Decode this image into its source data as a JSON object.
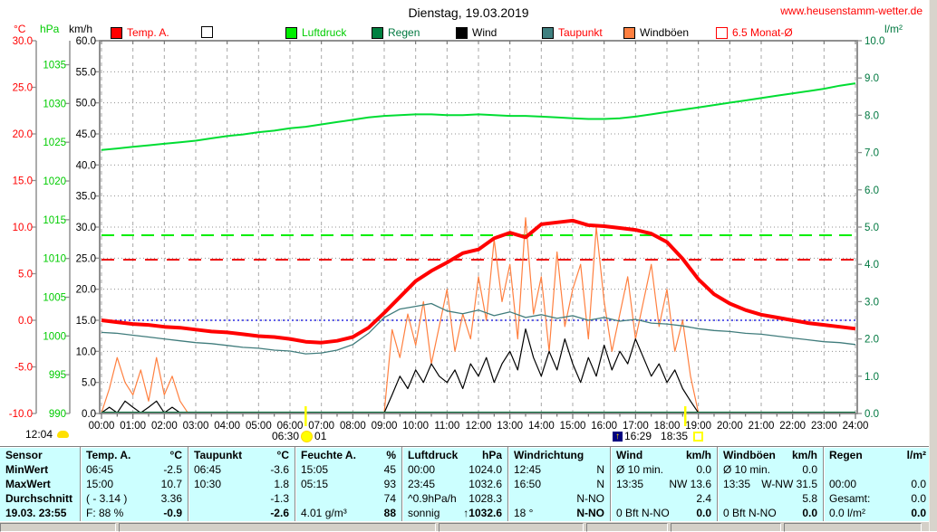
{
  "header": {
    "title": "Dienstag, 19.03.2019",
    "website": "www.heusenstamm-wetter.de"
  },
  "axis_unit_labels": {
    "temp": "°C",
    "pressure": "hPa",
    "wind": "km/h",
    "rain": "l/m²"
  },
  "legend": [
    {
      "label": "Temp. A.",
      "swatch_color": "#ff0000",
      "label_color": "#ff0000",
      "outline_only": false
    },
    {
      "label": "",
      "swatch_color": "#ffffff",
      "label_color": "#000000",
      "outline_only": false
    },
    {
      "label": "Luftdruck",
      "swatch_color": "#00ee00",
      "label_color": "#00cc00",
      "outline_only": false
    },
    {
      "label": "Regen",
      "swatch_color": "#008040",
      "label_color": "#007840",
      "outline_only": false
    },
    {
      "label": "Wind",
      "swatch_color": "#000000",
      "label_color": "#000000",
      "outline_only": false
    },
    {
      "label": "Taupunkt",
      "swatch_color": "#3f8080",
      "label_color": "#ff0000",
      "outline_only": false
    },
    {
      "label": "Windböen",
      "swatch_color": "#ff8040",
      "label_color": "#000000",
      "outline_only": false
    },
    {
      "label": "6.5 Monat-Ø",
      "swatch_color": "#ffffff",
      "label_color": "#ff0000",
      "outline_only": true
    }
  ],
  "chart_data": {
    "type": "line",
    "title": "Dienstag, 19.03.2019",
    "grid": true,
    "axes": {
      "temp": {
        "unit": "°C",
        "color": "#ff0000",
        "min": -10,
        "max": 30,
        "tick_step": 5,
        "decimals": 1
      },
      "pressure": {
        "unit": "hPa",
        "color": "#00cc00",
        "min": 990,
        "max": 1038.1,
        "tick_min": 990,
        "tick_max": 1035,
        "tick_step": 5,
        "decimals": 0
      },
      "wind": {
        "unit": "km/h",
        "color": "#000000",
        "min": 0,
        "max": 60,
        "tick_step": 5,
        "decimals": 1
      },
      "rain": {
        "unit": "l/m²",
        "color": "#007840",
        "min": 0,
        "max": 10,
        "tick_step": 1,
        "decimals": 1
      }
    },
    "x_axis": {
      "min_h": 0,
      "max_h": 24,
      "tick_labels": [
        "00:00",
        "01:00",
        "02:00",
        "03:00",
        "04:00",
        "05:00",
        "06:00",
        "07:00",
        "08:00",
        "09:00",
        "10:00",
        "11:00",
        "12:00",
        "13:00",
        "14:00",
        "15:00",
        "16:00",
        "17:00",
        "18:00",
        "19:00",
        "20:00",
        "21:00",
        "22:00",
        "23:00",
        "24:00"
      ]
    },
    "reference_lines": [
      {
        "name": "luftdruck-monatsmittel",
        "axis": "pressure",
        "value": 1013,
        "color": "#00ee00",
        "dash": "14,8",
        "width": 2
      },
      {
        "name": "temp-monatsmittel-6.5",
        "axis": "temp",
        "value": 6.5,
        "color": "#ee0000",
        "dash": "14,10",
        "width": 2
      },
      {
        "name": "nullgradgrenze",
        "axis": "temp",
        "value": 0,
        "color": "#0000dd",
        "dash": "2,3",
        "width": 1.3
      }
    ],
    "sun_markers": [
      {
        "name": "sunrise",
        "time_h": 6.5,
        "label": "06:30"
      },
      {
        "name": "sunset",
        "time_h": 18.583,
        "label": "18:35"
      }
    ],
    "series": [
      {
        "name": "Luftdruck",
        "unit": "hPa",
        "axis": "pressure",
        "color": "#00dd33",
        "width": 2,
        "step_h": 0.5,
        "values": [
          1024.0,
          1024.2,
          1024.4,
          1024.6,
          1024.8,
          1025.0,
          1025.2,
          1025.5,
          1025.8,
          1026.0,
          1026.3,
          1026.5,
          1026.8,
          1027.0,
          1027.3,
          1027.6,
          1027.9,
          1028.2,
          1028.4,
          1028.5,
          1028.6,
          1028.6,
          1028.5,
          1028.5,
          1028.6,
          1028.5,
          1028.4,
          1028.4,
          1028.3,
          1028.2,
          1028.1,
          1028.0,
          1028.0,
          1028.1,
          1028.3,
          1028.6,
          1028.9,
          1029.2,
          1029.5,
          1029.8,
          1030.1,
          1030.4,
          1030.7,
          1031.0,
          1031.3,
          1031.6,
          1031.9,
          1032.3,
          1032.6
        ]
      },
      {
        "name": "Windböen",
        "unit": "km/h",
        "axis": "wind",
        "color": "#ff8040",
        "width": 1.2,
        "step_h": 0.25,
        "values": [
          0,
          4,
          9,
          5,
          3,
          7,
          2,
          9,
          3,
          6,
          2,
          0,
          0,
          0,
          0,
          0,
          0,
          0,
          0,
          0,
          0,
          0,
          0,
          0,
          0,
          0,
          0,
          0,
          0,
          0,
          0,
          0,
          0,
          0,
          0,
          0,
          0,
          13.5,
          9,
          16,
          11,
          18,
          8,
          14,
          20,
          10,
          16,
          12,
          22,
          15,
          28,
          18,
          24,
          12,
          31.5,
          16,
          22,
          10,
          26,
          14,
          20,
          24,
          12,
          30,
          18,
          10,
          16,
          22,
          12,
          18,
          24,
          14,
          20,
          10,
          15,
          6,
          0,
          0,
          0,
          0,
          0,
          0,
          0,
          0,
          0,
          0,
          0,
          0,
          0,
          0,
          0,
          0,
          0,
          0,
          0,
          0,
          0
        ]
      },
      {
        "name": "Wind",
        "unit": "km/h",
        "axis": "wind",
        "color": "#000000",
        "width": 1.2,
        "step_h": 0.25,
        "values": [
          0,
          1,
          0,
          2,
          1,
          0,
          1,
          2,
          0,
          1,
          0,
          0,
          0,
          0,
          0,
          0,
          0,
          0,
          0,
          0,
          0,
          0,
          0,
          0,
          0,
          0,
          0,
          0,
          0,
          0,
          0,
          0,
          0,
          0,
          0,
          0,
          0,
          3,
          6,
          4,
          7,
          5,
          8,
          6,
          5,
          7,
          4,
          8,
          6,
          9,
          5,
          8,
          10,
          7,
          13.6,
          9,
          6,
          10,
          7,
          12,
          8,
          5,
          9,
          6,
          11,
          7,
          10,
          8,
          12,
          9,
          6,
          8,
          5,
          7,
          4,
          2,
          0,
          0,
          0,
          0,
          0,
          0,
          0,
          0,
          0,
          0,
          0,
          0,
          0,
          0,
          0,
          0,
          0,
          0,
          0,
          0,
          0
        ]
      },
      {
        "name": "Taupunkt",
        "unit": "°C",
        "axis": "temp",
        "color": "#407c7c",
        "width": 1.3,
        "step_h": 0.5,
        "values": [
          -1.3,
          -1.4,
          -1.6,
          -1.8,
          -2.0,
          -2.2,
          -2.4,
          -2.5,
          -2.7,
          -2.9,
          -3.0,
          -3.2,
          -3.3,
          -3.6,
          -3.5,
          -3.2,
          -2.6,
          -1.4,
          0.3,
          1.2,
          1.5,
          1.8,
          1.0,
          0.7,
          1.1,
          0.5,
          0.9,
          0.3,
          0.6,
          0.2,
          0.5,
          0.0,
          0.3,
          -0.1,
          0.1,
          -0.3,
          -0.4,
          -0.6,
          -0.9,
          -1.1,
          -1.2,
          -1.4,
          -1.5,
          -1.7,
          -1.9,
          -2.1,
          -2.3,
          -2.4,
          -2.6
        ]
      },
      {
        "name": "Regen",
        "unit": "l/m²",
        "axis": "rain",
        "color": "#006633",
        "width": 2.5,
        "step_h": 12,
        "values": [
          0,
          0,
          0
        ]
      },
      {
        "name": "Temp. A.",
        "unit": "°C",
        "axis": "temp",
        "color": "#ff0000",
        "width": 4,
        "step_h": 0.5,
        "values": [
          0.0,
          -0.2,
          -0.4,
          -0.5,
          -0.7,
          -0.8,
          -1.0,
          -1.2,
          -1.3,
          -1.5,
          -1.7,
          -1.8,
          -2.0,
          -2.3,
          -2.4,
          -2.2,
          -1.8,
          -0.8,
          0.8,
          2.5,
          4.2,
          5.3,
          6.2,
          7.2,
          7.6,
          8.8,
          9.4,
          8.9,
          10.3,
          10.5,
          10.7,
          10.2,
          10.1,
          9.9,
          9.7,
          9.3,
          8.4,
          6.6,
          4.4,
          2.8,
          1.8,
          1.1,
          0.6,
          0.3,
          0.0,
          -0.3,
          -0.5,
          -0.7,
          -0.9
        ]
      }
    ]
  },
  "annotations": {
    "moonrise_time": "12:04",
    "sunrise_time": "06:30",
    "sunrise_suffix": "01",
    "moonset_time": "16:29",
    "sunset_time": "18:35",
    "moonset_icon_glyph": "↑"
  },
  "table": {
    "row_labels": [
      "Sensor",
      "MinWert",
      "MaxWert",
      "Durchschnitt",
      "19.03. 23:55"
    ],
    "columns": [
      {
        "name": "Temp. A.",
        "unit": "°C",
        "rows": [
          [
            "06:45",
            "-2.5"
          ],
          [
            "15:00",
            "10.7"
          ],
          [
            "( - 3.14 )",
            "3.36"
          ],
          [
            "F: 88 %",
            "-0.9"
          ]
        ]
      },
      {
        "name": "Taupunkt",
        "unit": "°C",
        "rows": [
          [
            "06:45",
            "-3.6"
          ],
          [
            "10:30",
            "1.8"
          ],
          [
            "",
            "-1.3"
          ],
          [
            "",
            "-2.6"
          ]
        ]
      },
      {
        "name": "Feuchte A.",
        "unit": "%",
        "rows": [
          [
            "15:05",
            "45"
          ],
          [
            "05:15",
            "93"
          ],
          [
            "",
            "74"
          ],
          [
            "4.01 g/m³",
            "88"
          ]
        ]
      },
      {
        "name": "Luftdruck",
        "unit": "hPa",
        "rows": [
          [
            "00:00",
            "1024.0"
          ],
          [
            "23:45",
            "1032.6"
          ],
          [
            "^0.9hPa/h",
            "1028.3"
          ],
          [
            "sonnig",
            "↑1032.6"
          ]
        ]
      },
      {
        "name": "Windrichtung",
        "unit": "",
        "rows": [
          [
            "12:45",
            "N"
          ],
          [
            "16:50",
            "N"
          ],
          [
            "",
            "N-NO"
          ],
          [
            "18 °",
            "N-NO"
          ]
        ]
      },
      {
        "name": "Wind",
        "unit": "km/h",
        "rows": [
          [
            "Ø 10 min.",
            "0.0"
          ],
          [
            "13:35",
            "NW 13.6"
          ],
          [
            "",
            "2.4"
          ],
          [
            "0 Bft N-NO",
            "0.0"
          ]
        ]
      },
      {
        "name": "Windböen",
        "unit": "km/h",
        "rows": [
          [
            "Ø 10 min.",
            "0.0"
          ],
          [
            "13:35",
            "W-NW 31.5"
          ],
          [
            "",
            "5.8"
          ],
          [
            "0 Bft N-NO",
            "0.0"
          ]
        ]
      },
      {
        "name": "Regen",
        "unit": "l/m²",
        "rows": [
          [
            "",
            ""
          ],
          [
            "00:00",
            "0.0"
          ],
          [
            "Gesamt:",
            "0.0"
          ],
          [
            "0.0 l/m²",
            "0.0"
          ]
        ]
      }
    ]
  }
}
